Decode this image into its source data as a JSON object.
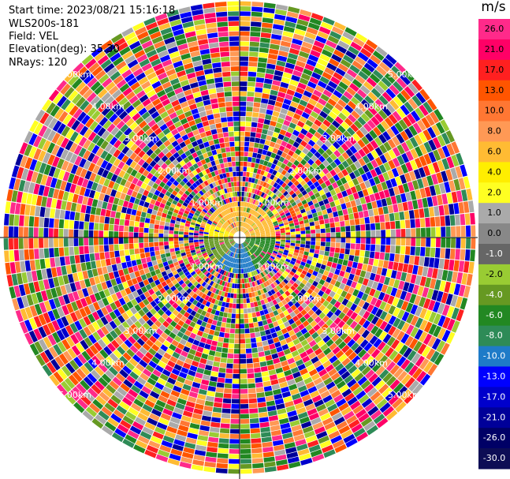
{
  "header": {
    "start_time": "Start time: 2023/08/21 15:16:18",
    "instrument": "WLS200s-181",
    "field": "Field: VEL",
    "elevation": "Elevation(deg): 35.30",
    "nrays": "NRays: 120"
  },
  "colorbar": {
    "title": "m/s",
    "ticks": [
      "26.0",
      "21.0",
      "17.0",
      "13.0",
      "10.0",
      "8.0",
      "6.0",
      "4.0",
      "2.0",
      "1.0",
      "0.0",
      "-1.0",
      "-2.0",
      "-4.0",
      "-6.0",
      "-8.0",
      "-10.0",
      "-13.0",
      "-17.0",
      "-21.0",
      "-26.0",
      "-30.0"
    ],
    "colors": [
      "#ff2a8a",
      "#ff0066",
      "#ff2020",
      "#ff5500",
      "#ff7733",
      "#ff9955",
      "#ffbb33",
      "#ffee00",
      "#ffff22",
      "#aaaaaa",
      "#888888",
      "#666666",
      "#99cc33",
      "#669922",
      "#228822",
      "#2e8b57",
      "#1e7bc8",
      "#0000ff",
      "#0000cc",
      "#000099",
      "#000066",
      "#0d0d55"
    ]
  },
  "chart_data": {
    "type": "ppi",
    "field": "VEL",
    "units": "m/s",
    "n_rays": 120,
    "elevation_deg": 35.3,
    "range_rings": [
      {
        "label": "1.00km"
      },
      {
        "label": "2.00km"
      },
      {
        "label": "3.00km"
      },
      {
        "label": "4.00km"
      },
      {
        "label": "5.00km"
      }
    ],
    "color_levels": [
      26.0,
      21.0,
      17.0,
      13.0,
      10.0,
      8.0,
      6.0,
      4.0,
      2.0,
      1.0,
      0.0,
      -1.0,
      -2.0,
      -4.0,
      -6.0,
      -8.0,
      -10.0,
      -13.0,
      -17.0,
      -21.0,
      -26.0,
      -30.0
    ]
  }
}
